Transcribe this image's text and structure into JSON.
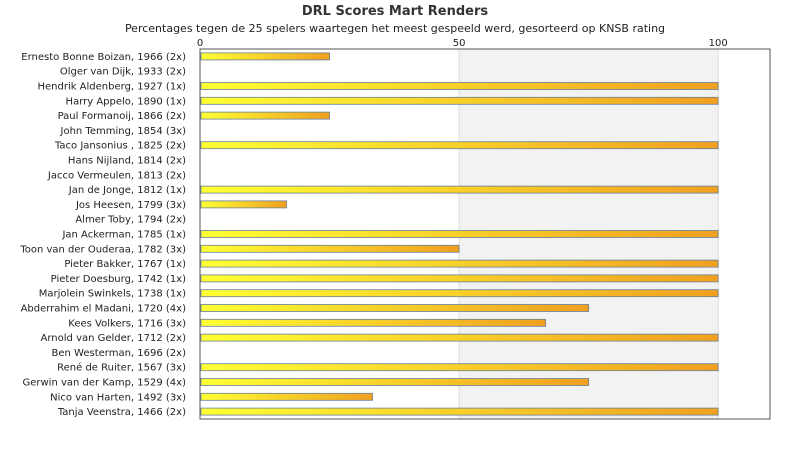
{
  "chart_data": {
    "type": "bar",
    "orientation": "horizontal",
    "title": "DRL Scores Mart Renders",
    "subtitle": "Percentages tegen de 25 spelers waartegen het meest gespeeld werd, gesorteerd op KNSB rating",
    "xlim": [
      0,
      110
    ],
    "x_ticks": [
      0,
      50,
      100
    ],
    "grid": true,
    "categories": [
      "Ernesto Bonne Boizan, 1966 (2x)",
      "Olger van Dijk, 1933 (2x)",
      "Hendrik Aldenberg, 1927 (1x)",
      "Harry Appelo, 1890 (1x)",
      "Paul Formanoij, 1866 (2x)",
      "John Temming, 1854 (3x)",
      "Taco Jansonius , 1825 (2x)",
      "Hans Nijland, 1814 (2x)",
      "Jacco Vermeulen, 1813 (2x)",
      "Jan de Jonge, 1812 (1x)",
      "Jos Heesen, 1799 (3x)",
      "Almer Toby, 1794 (2x)",
      "Jan Ackerman, 1785 (1x)",
      "Toon van der Ouderaa, 1782 (3x)",
      "Pieter Bakker, 1767 (1x)",
      "Pieter Doesburg, 1742 (1x)",
      "Marjolein Swinkels, 1738 (1x)",
      "Abderrahim el Madani, 1720 (4x)",
      "Kees Volkers, 1716 (3x)",
      "Arnold van Gelder, 1712 (2x)",
      "Ben Westerman, 1696 (2x)",
      "René de Ruiter, 1567 (3x)",
      "Gerwin van der Kamp, 1529 (4x)",
      "Nico van Harten, 1492 (3x)",
      "Tanja Veenstra, 1466 (2x)"
    ],
    "values": [
      25,
      0,
      100,
      100,
      25,
      0,
      100,
      0,
      0,
      100,
      16.7,
      0,
      100,
      50,
      100,
      100,
      100,
      75,
      66.7,
      100,
      0,
      100,
      75,
      33.3,
      100
    ],
    "colors": {
      "bar_start": "#ffff33",
      "bar_end": "#f0a020",
      "bar_stroke": "#6a7f9a",
      "band": "#f2f2f2",
      "axis": "#555555",
      "grid": "#dddddd"
    }
  }
}
